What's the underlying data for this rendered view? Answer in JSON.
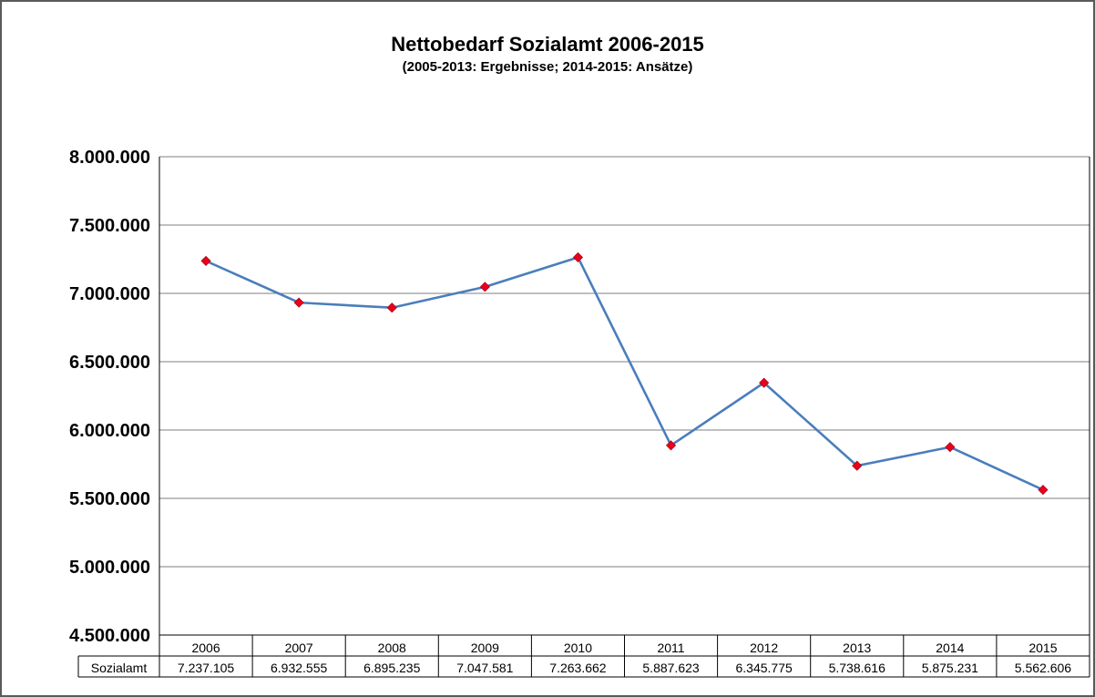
{
  "chart_data": {
    "type": "line",
    "title": "Nettobedarf Sozialamt 2006-2015",
    "subtitle": "(2005-2013: Ergebnisse; 2014-2015: Ansätze)",
    "categories": [
      "2006",
      "2007",
      "2008",
      "2009",
      "2010",
      "2011",
      "2012",
      "2013",
      "2014",
      "2015"
    ],
    "series": [
      {
        "name": "Sozialamt",
        "values": [
          7237105,
          6932555,
          6895235,
          7047581,
          7263662,
          5887623,
          6345775,
          5738616,
          5875231,
          5562606
        ],
        "labels": [
          "7.237.105",
          "6.932.555",
          "6.895.235",
          "7.047.581",
          "7.263.662",
          "5.887.623",
          "6.345.775",
          "5.738.616",
          "5.875.231",
          "5.562.606"
        ]
      }
    ],
    "y_ticks": [
      "4.500.000",
      "5.000.000",
      "5.500.000",
      "6.000.000",
      "6.500.000",
      "7.000.000",
      "7.500.000",
      "8.000.000"
    ],
    "ylim": [
      4500000,
      8000000
    ],
    "grid": true,
    "legend": "data-table",
    "colors": {
      "line": "#4a7ebb",
      "marker": "#e8001c",
      "grid": "#7f7f7f"
    }
  }
}
